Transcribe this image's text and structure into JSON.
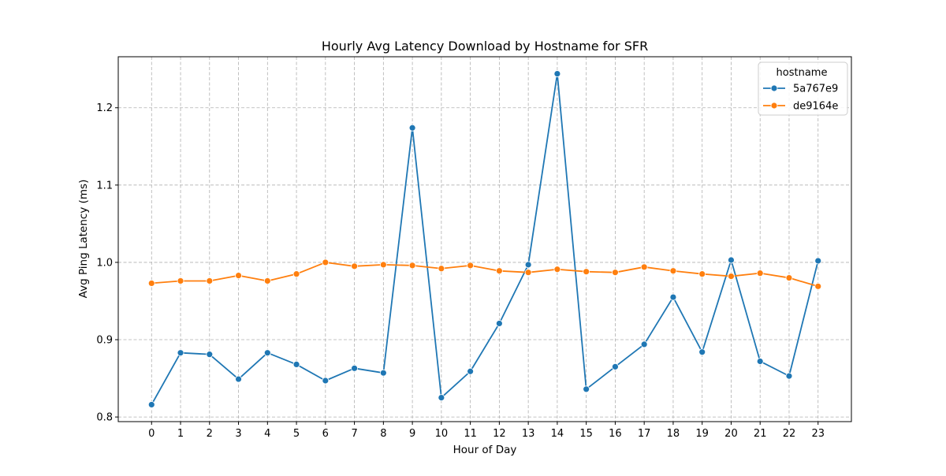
{
  "chart_data": {
    "type": "line",
    "title": "Hourly Avg Latency Download by Hostname for SFR",
    "xlabel": "Hour of Day",
    "ylabel": "Avg Ping Latency (ms)",
    "x": [
      0,
      1,
      2,
      3,
      4,
      5,
      6,
      7,
      8,
      9,
      10,
      11,
      12,
      13,
      14,
      15,
      16,
      17,
      18,
      19,
      20,
      21,
      22,
      23
    ],
    "xlim": [
      -1.15,
      24.15
    ],
    "ylim": [
      0.794,
      1.266
    ],
    "yticks": [
      0.8,
      0.9,
      1.0,
      1.1,
      1.2
    ],
    "grid": true,
    "legend": {
      "title": "hostname",
      "placement": "top-right"
    },
    "series": [
      {
        "name": "5a767e9",
        "color": "#1f77b4",
        "marker": "circle",
        "values": [
          0.816,
          0.883,
          0.881,
          0.849,
          0.883,
          0.868,
          0.847,
          0.863,
          0.857,
          1.174,
          0.825,
          0.859,
          0.921,
          0.997,
          1.244,
          0.836,
          0.865,
          0.894,
          0.955,
          0.884,
          1.003,
          0.872,
          0.853,
          1.002
        ]
      },
      {
        "name": "de9164e",
        "color": "#ff7f0e",
        "marker": "circle",
        "values": [
          0.973,
          0.976,
          0.976,
          0.983,
          0.976,
          0.985,
          1.0,
          0.995,
          0.997,
          0.996,
          0.992,
          0.996,
          0.989,
          0.987,
          0.991,
          0.988,
          0.987,
          0.994,
          0.989,
          0.985,
          0.982,
          0.986,
          0.98,
          0.969
        ]
      }
    ]
  }
}
